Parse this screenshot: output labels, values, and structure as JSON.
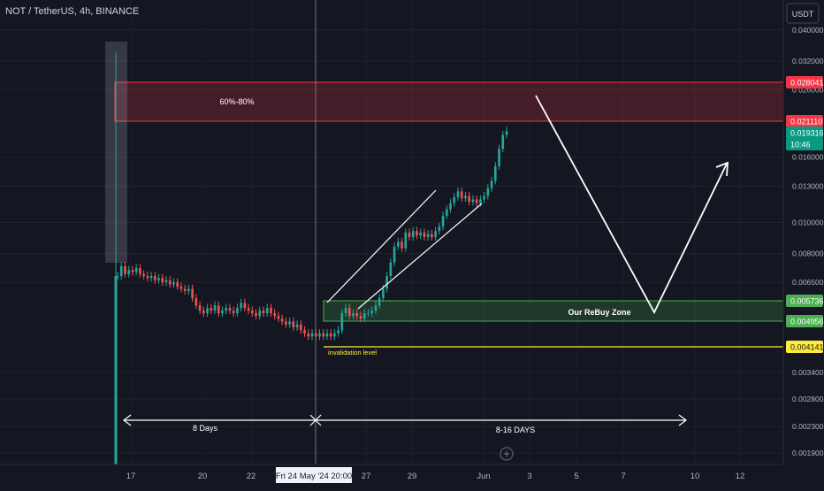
{
  "header": {
    "symbol": "NOT / TetherUS, 4h, BINANCE",
    "currency": "USDT"
  },
  "y_axis": {
    "ticks": [
      "0.040000",
      "0.032000",
      "0.026000",
      "0.016000",
      "0.013000",
      "0.010000",
      "0.008000",
      "0.006500",
      "0.003400",
      "0.002800",
      "0.002300",
      "0.001900"
    ]
  },
  "price_badges": [
    {
      "id": "badge-0028041",
      "text": "0.028041",
      "bg": "#f23645",
      "fg": "#ffffff"
    },
    {
      "id": "badge-0021110",
      "text": "0.021110",
      "bg": "#f23645",
      "fg": "#ffffff"
    },
    {
      "id": "badge-current-price",
      "text": "0.019316",
      "bg": "#089981",
      "fg": "#ffffff"
    },
    {
      "id": "badge-countdown",
      "text": "10:46",
      "bg": "#089981",
      "fg": "#ffffff"
    },
    {
      "id": "badge-0005736",
      "text": "0.005736",
      "bg": "#4caf50",
      "fg": "#ffffff"
    },
    {
      "id": "badge-0004956",
      "text": "0.004956",
      "bg": "#4caf50",
      "fg": "#ffffff"
    },
    {
      "id": "badge-0004141",
      "text": "0.004141",
      "bg": "#ffeb3b",
      "fg": "#131722"
    }
  ],
  "x_axis": {
    "ticks": [
      "17",
      "20",
      "22",
      "27",
      "29",
      "Jun",
      "3",
      "5",
      "7",
      "10",
      "12"
    ],
    "crosshair_label": "Fri 24 May '24   20:00"
  },
  "annotations": {
    "resistance_zone_label": "60%-80%",
    "rebuy_zone_label": "Our ReBuy Zone",
    "invalidation_label": "invalidation level",
    "duration_left": "8 Days",
    "duration_right": "8-16 DAYS"
  },
  "colors": {
    "background": "#141722",
    "up": "#26a69a",
    "down": "#ef5350",
    "resistance": "#f23645",
    "rebuy": "#4caf50",
    "invalidation": "#ffeb3b",
    "text": "#b2b5be",
    "annotation": "#ffffff"
  },
  "icons": {
    "flash": "flash-icon"
  },
  "chart_data": {
    "type": "candlestick",
    "symbol": "NOT / TetherUS",
    "interval": "4h",
    "exchange": "BINANCE",
    "ylabel": "USDT",
    "y_scale": "log",
    "ylim": [
      0.00175,
      0.046
    ],
    "zones": [
      {
        "name": "60%-80%",
        "from": 0.02111,
        "to": 0.028041
      },
      {
        "name": "Our ReBuy Zone",
        "from": 0.004956,
        "to": 0.005736
      }
    ],
    "levels": [
      {
        "name": "invalidation level",
        "value": 0.004141
      }
    ],
    "current_price": 0.019316,
    "closes": [
      0.0068,
      0.0073,
      0.0069,
      0.0071,
      0.007,
      0.0072,
      0.0069,
      0.0068,
      0.0067,
      0.0068,
      0.0066,
      0.0067,
      0.0065,
      0.0066,
      0.0064,
      0.0065,
      0.0063,
      0.0062,
      0.0061,
      0.0062,
      0.0058,
      0.0055,
      0.0053,
      0.0052,
      0.0054,
      0.0053,
      0.0055,
      0.0052,
      0.0053,
      0.0054,
      0.0053,
      0.0052,
      0.0054,
      0.0056,
      0.0054,
      0.0053,
      0.0052,
      0.0051,
      0.0053,
      0.0052,
      0.0054,
      0.0052,
      0.0051,
      0.005,
      0.0049,
      0.0048,
      0.0049,
      0.0047,
      0.0048,
      0.0046,
      0.0045,
      0.0044,
      0.0045,
      0.0044,
      0.0045,
      0.0044,
      0.0045,
      0.0044,
      0.0045,
      0.0046,
      0.0052,
      0.0054,
      0.0051,
      0.0052,
      0.0051,
      0.005,
      0.0052,
      0.0052,
      0.0053,
      0.0055,
      0.0058,
      0.0062,
      0.0068,
      0.0075,
      0.0084,
      0.0087,
      0.0083,
      0.0093,
      0.009,
      0.0094,
      0.0091,
      0.0093,
      0.009,
      0.0092,
      0.009,
      0.0094,
      0.0097,
      0.0105,
      0.011,
      0.0115,
      0.012,
      0.0125,
      0.0119,
      0.0121,
      0.0116,
      0.0118,
      0.0115,
      0.0118,
      0.0121,
      0.0128,
      0.0135,
      0.015,
      0.017,
      0.0188,
      0.0193
    ]
  }
}
